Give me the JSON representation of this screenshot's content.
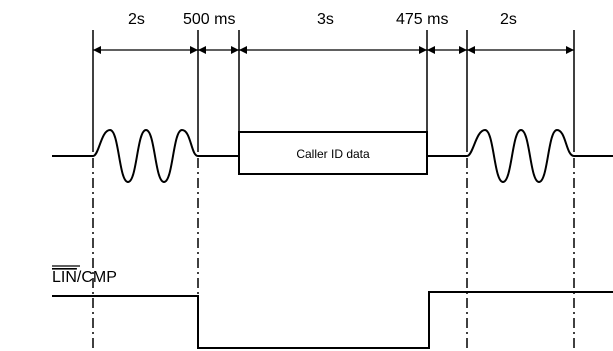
{
  "diagram": {
    "durations": {
      "ring1": "2s",
      "gap1": "500 ms",
      "data": "3s",
      "gap2": "475 ms",
      "ring2": "2s"
    },
    "caller_id_label": "Caller ID data",
    "signal_label": {
      "overline_part": "LIN",
      "rest": "/CMP"
    }
  }
}
